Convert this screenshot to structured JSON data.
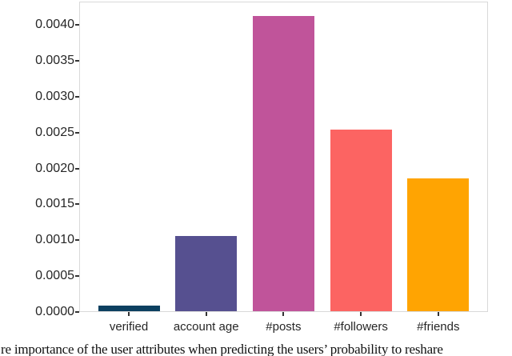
{
  "figure": {
    "caption_visible_text": "re importance of the user attributes when predicting the users’ probability to reshare"
  },
  "chart_data": {
    "type": "bar",
    "title": "",
    "xlabel": "",
    "ylabel": "",
    "categories": [
      "verified",
      "account age",
      "#posts",
      "#followers",
      "#friends"
    ],
    "values": [
      8e-05,
      0.00105,
      0.00411,
      0.00253,
      0.00185
    ],
    "bar_colors": [
      "#0c4060",
      "#565090",
      "#c0549a",
      "#fc6462",
      "#ffa402"
    ],
    "ylim": [
      0,
      0.00432
    ],
    "ytick_values": [
      0.0,
      0.0005,
      0.001,
      0.0015,
      0.002,
      0.0025,
      0.003,
      0.0035,
      0.004
    ],
    "ytick_labels": [
      "0.0000",
      "0.0005",
      "0.0010",
      "0.0015",
      "0.0020",
      "0.0025",
      "0.0030",
      "0.0035",
      "0.0040"
    ],
    "grid": false,
    "legend": "none",
    "caption": "re importance of the user attributes when predicting the users’ probability to reshare"
  }
}
